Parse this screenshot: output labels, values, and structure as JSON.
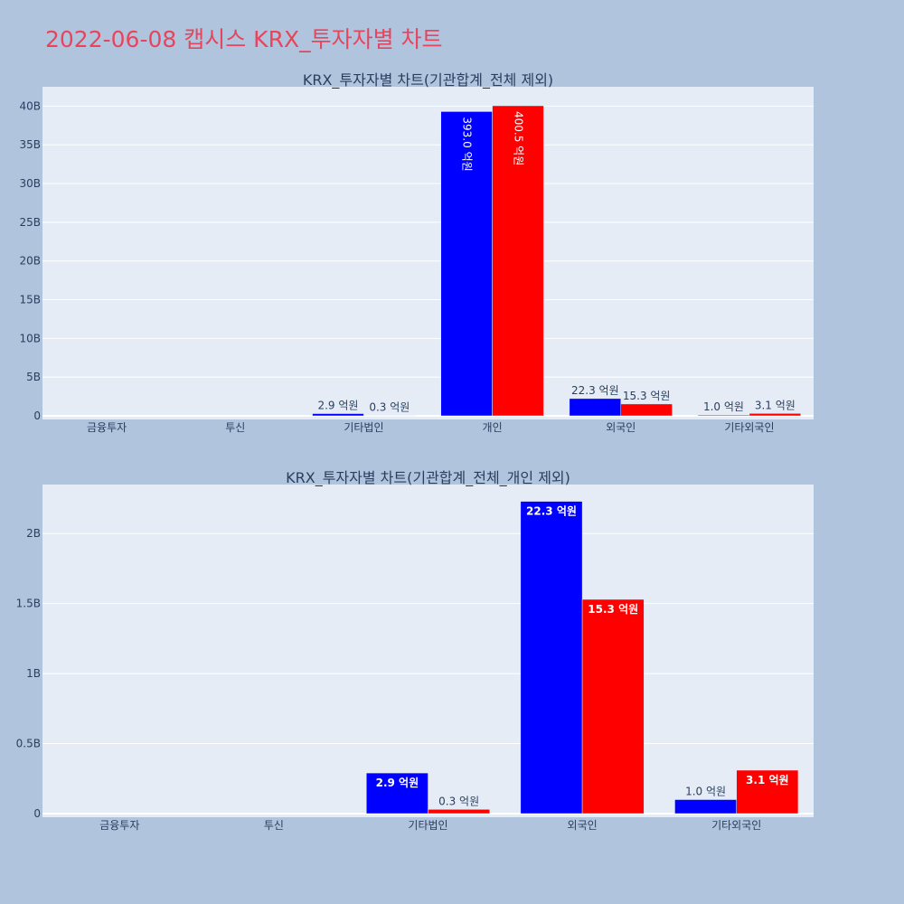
{
  "page_title": "2022-06-08 캡시스 KRX_투자자별 차트",
  "colors": {
    "buy": "#0000ff",
    "sell": "#ff0000",
    "background": "#b0c4de",
    "plot_bg": "#e5ecf6",
    "title": "#e8455d"
  },
  "chart_data": [
    {
      "type": "bar",
      "title": "KRX_투자자별 차트(기관합계_전체 제외)",
      "categories": [
        "금융투자",
        "투신",
        "기타법인",
        "개인",
        "외국인",
        "기타외국인"
      ],
      "series": [
        {
          "color": "#0000ff",
          "values": [
            0,
            0,
            290000000,
            39300000000,
            2230000000,
            100000000
          ],
          "labels": [
            "",
            "",
            "2.9 억원",
            "393.0 억원",
            "22.3 억원",
            "1.0 억원"
          ]
        },
        {
          "color": "#ff0000",
          "values": [
            0,
            0,
            30000000,
            40050000000,
            1530000000,
            310000000
          ],
          "labels": [
            "",
            "",
            "0.3 억원",
            "400.5 억원",
            "15.3 억원",
            "3.1 억원"
          ]
        }
      ],
      "ylim": [
        0,
        42500000000
      ],
      "yticks": [
        0,
        5000000000,
        10000000000,
        15000000000,
        20000000000,
        25000000000,
        30000000000,
        35000000000,
        40000000000
      ],
      "ytick_labels": [
        "0",
        "5B",
        "10B",
        "15B",
        "20B",
        "25B",
        "30B",
        "35B",
        "40B"
      ],
      "grid": true,
      "legend": "none"
    },
    {
      "type": "bar",
      "title": "KRX_투자자별 차트(기관합계_전체_개인 제외)",
      "categories": [
        "금융투자",
        "투신",
        "기타법인",
        "외국인",
        "기타외국인"
      ],
      "series": [
        {
          "color": "#0000ff",
          "values": [
            0,
            0,
            290000000,
            2230000000,
            100000000
          ],
          "labels": [
            "",
            "",
            "2.9 억원",
            "22.3 억원",
            "1.0 억원"
          ]
        },
        {
          "color": "#ff0000",
          "values": [
            0,
            0,
            30000000,
            1530000000,
            310000000
          ],
          "labels": [
            "",
            "",
            "0.3 억원",
            "15.3 억원",
            "3.1 억원"
          ]
        }
      ],
      "ylim": [
        0,
        2350000000
      ],
      "yticks": [
        0,
        500000000,
        1000000000,
        1500000000,
        2000000000
      ],
      "ytick_labels": [
        "0",
        "0.5B",
        "1B",
        "1.5B",
        "2B"
      ],
      "grid": true,
      "legend": "none"
    }
  ]
}
